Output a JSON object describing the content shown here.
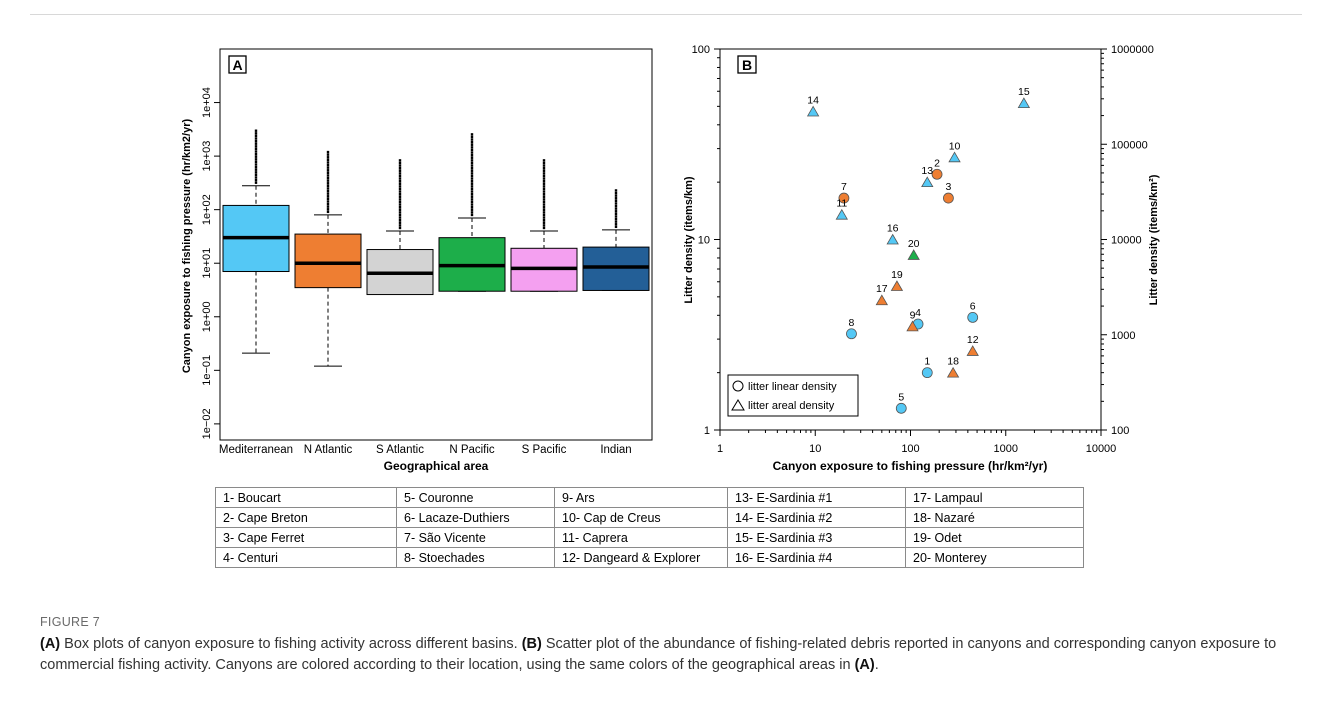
{
  "chart_data": [
    {
      "panel": "A",
      "type": "box",
      "ylabel": "Canyon exposure to fishing pressure (hr/km2/yr)",
      "xlabel": "Geographical area",
      "yscale": "log",
      "ylim": [
        0.005,
        100000
      ],
      "yticks": [
        "1e−02",
        "1e−01",
        "1e+00",
        "1e+01",
        "1e+02",
        "1e+03",
        "1e+04"
      ],
      "categories": [
        "Mediterranean",
        "N Atlantic",
        "S Atlantic",
        "N Pacific",
        "S Pacific",
        "Indian"
      ],
      "colors": [
        "#54C8F5",
        "#EE7E32",
        "#D3D3D3",
        "#1DAE4A",
        "#F4A0F0",
        "#235F97"
      ],
      "boxes": [
        {
          "whisker_low": 0.21,
          "q1": 7,
          "median": 30,
          "q3": 120,
          "whisker_high": 280,
          "outlier_max": 3000
        },
        {
          "whisker_low": 0.12,
          "q1": 3.5,
          "median": 10,
          "q3": 35,
          "whisker_high": 80,
          "outlier_max": 1200
        },
        {
          "whisker_low": 2.6,
          "q1": 2.6,
          "median": 6.5,
          "q3": 18,
          "whisker_high": 40,
          "outlier_max": 900
        },
        {
          "whisker_low": 3,
          "q1": 3,
          "median": 9,
          "q3": 30,
          "whisker_high": 70,
          "outlier_max": 2600
        },
        {
          "whisker_low": 3,
          "q1": 3,
          "median": 8,
          "q3": 19,
          "whisker_high": 40,
          "outlier_max": 900
        },
        {
          "whisker_low": 3.1,
          "q1": 3.1,
          "median": 8.5,
          "q3": 20,
          "whisker_high": 42,
          "outlier_max": 240
        }
      ]
    },
    {
      "panel": "B",
      "type": "scatter",
      "xlabel": "Canyon exposure to fishing pressure (hr/km²/yr)",
      "ylabel": "Litter density (items/km)",
      "y2label": "Litter density (items/km²)",
      "xscale": "log",
      "yscale": "log",
      "xlim": [
        1,
        10000
      ],
      "ylim": [
        1,
        100
      ],
      "y2lim": [
        100,
        1000000
      ],
      "xticks": [
        "1",
        "10",
        "100",
        "1000",
        "10000"
      ],
      "yticks": [
        "1",
        "10",
        "100"
      ],
      "y2ticks": [
        "100",
        "1000",
        "10000",
        "100000",
        "1000000"
      ],
      "legend": {
        "position": "bottom-left",
        "entries": [
          {
            "shape": "circle",
            "label": "litter linear density"
          },
          {
            "shape": "triangle",
            "label": "litter areal density"
          }
        ]
      },
      "points": [
        {
          "id": "1",
          "x": 150,
          "y": 2.0,
          "shape": "circle",
          "color": "#54C8F5"
        },
        {
          "id": "2",
          "x": 190,
          "y": 22,
          "shape": "circle",
          "color": "#EE7E32"
        },
        {
          "id": "3",
          "x": 250,
          "y": 16.5,
          "shape": "circle",
          "color": "#EE7E32"
        },
        {
          "id": "4",
          "x": 120,
          "y": 3.6,
          "shape": "circle",
          "color": "#54C8F5"
        },
        {
          "id": "5",
          "x": 80,
          "y": 1.3,
          "shape": "circle",
          "color": "#54C8F5"
        },
        {
          "id": "6",
          "x": 450,
          "y": 3.9,
          "shape": "circle",
          "color": "#54C8F5"
        },
        {
          "id": "7",
          "x": 20,
          "y": 16.5,
          "shape": "circle",
          "color": "#EE7E32"
        },
        {
          "id": "8",
          "x": 24,
          "y": 3.2,
          "shape": "circle",
          "color": "#54C8F5"
        },
        {
          "id": "9",
          "x": 105,
          "y": 3.5,
          "shape": "triangle",
          "color": "#EE7E32"
        },
        {
          "id": "10",
          "x": 290,
          "y": 27,
          "shape": "triangle",
          "color": "#54C8F5"
        },
        {
          "id": "11",
          "x": 19,
          "y": 13.5,
          "shape": "triangle",
          "color": "#54C8F5"
        },
        {
          "id": "12",
          "x": 450,
          "y": 2.6,
          "shape": "triangle",
          "color": "#EE7E32"
        },
        {
          "id": "13",
          "x": 150,
          "y": 20,
          "shape": "triangle",
          "color": "#54C8F5"
        },
        {
          "id": "14",
          "x": 9.5,
          "y": 47,
          "shape": "triangle",
          "color": "#54C8F5"
        },
        {
          "id": "15",
          "x": 1550,
          "y": 52,
          "shape": "triangle",
          "color": "#54C8F5"
        },
        {
          "id": "16",
          "x": 65,
          "y": 10,
          "shape": "triangle",
          "color": "#54C8F5"
        },
        {
          "id": "17",
          "x": 50,
          "y": 4.8,
          "shape": "triangle",
          "color": "#EE7E32"
        },
        {
          "id": "18",
          "x": 280,
          "y": 2.0,
          "shape": "triangle",
          "color": "#EE7E32"
        },
        {
          "id": "19",
          "x": 72,
          "y": 5.7,
          "shape": "triangle",
          "color": "#EE7E32"
        },
        {
          "id": "20",
          "x": 108,
          "y": 8.3,
          "shape": "triangle",
          "color": "#1DAE4A"
        }
      ]
    }
  ],
  "canyon_table": [
    [
      "1-  Boucart",
      "5-  Couronne",
      "9-  Ars",
      "13-  E-Sardinia #1",
      "17-  Lampaul"
    ],
    [
      "2-  Cape Breton",
      "6-  Lacaze-Duthiers",
      "10-  Cap de Creus",
      "14-  E-Sardinia #2",
      "18-  Nazaré"
    ],
    [
      "3-  Cape Ferret",
      "7-  São Vicente",
      "11-  Caprera",
      "15-  E-Sardinia #3",
      "19-  Odet"
    ],
    [
      "4-  Centuri",
      "8-  Stoechades",
      "12-  Dangeard & Explorer",
      "16-  E-Sardinia #4",
      "20-  Monterey"
    ]
  ],
  "caption": {
    "label": "FIGURE 7",
    "a_tag": "(A)",
    "a_text": " Box plots of canyon exposure to fishing activity across different basins. ",
    "b_tag": "(B)",
    "b_text": " Scatter plot of the abundance of fishing-related debris reported in canyons and corresponding canyon exposure to commercial fishing activity. Canyons are colored according to their location, using the same colors of the geographical areas in ",
    "a_ref": "(A)",
    "end": "."
  }
}
